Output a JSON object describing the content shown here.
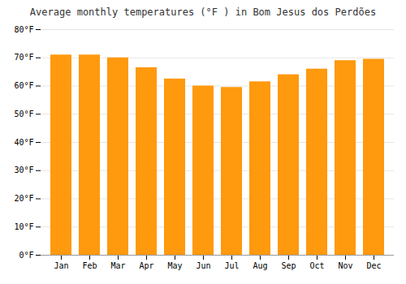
{
  "chart_data": {
    "type": "bar",
    "title": "Average monthly temperatures (°F ) in Bom Jesus dos Perdões",
    "categories": [
      "Jan",
      "Feb",
      "Mar",
      "Apr",
      "May",
      "Jun",
      "Jul",
      "Aug",
      "Sep",
      "Oct",
      "Nov",
      "Dec"
    ],
    "values": [
      71.0,
      71.0,
      70.0,
      66.5,
      62.5,
      60.0,
      59.5,
      61.5,
      64.0,
      66.0,
      69.0,
      69.5
    ],
    "color": "#ff990d",
    "ylim": [
      0,
      80
    ],
    "yticks": [
      {
        "value": 0,
        "label": "0°F"
      },
      {
        "value": 10,
        "label": "10°F"
      },
      {
        "value": 20,
        "label": "20°F"
      },
      {
        "value": 30,
        "label": "30°F"
      },
      {
        "value": 40,
        "label": "40°F"
      },
      {
        "value": 50,
        "label": "50°F"
      },
      {
        "value": 60,
        "label": "60°F"
      },
      {
        "value": 70,
        "label": "70°F"
      },
      {
        "value": 80,
        "label": "80°F"
      }
    ],
    "grid": true
  }
}
